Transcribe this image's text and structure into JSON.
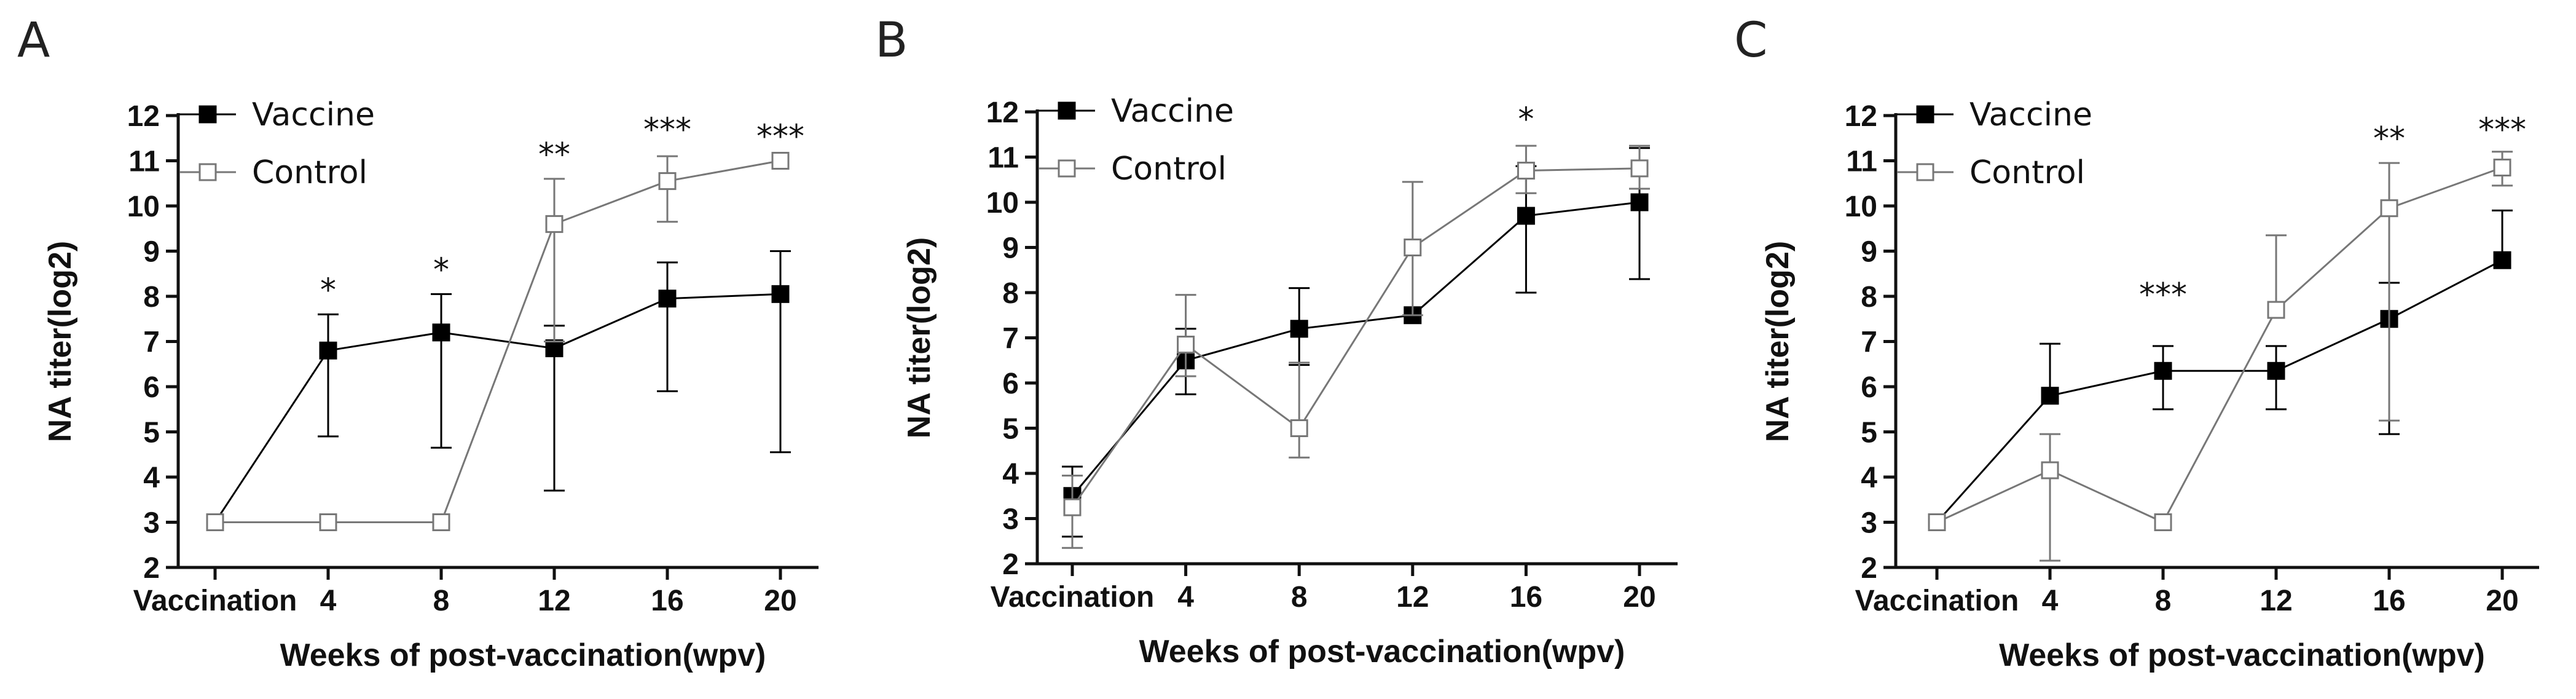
{
  "figure": {
    "colors": {
      "axis": "#111111",
      "vaccine": "#000000",
      "control_line": "#777777",
      "control_fill": "#ffffff"
    }
  },
  "chart_data": [
    {
      "panel": "A",
      "type": "line",
      "xlabel": "Weeks of post-vaccination(wpv)",
      "ylabel": "NA titer(log2)",
      "ylim": [
        2,
        12
      ],
      "categories": [
        "Vaccination",
        "4",
        "8",
        "12",
        "16",
        "20"
      ],
      "yticks": [
        "2",
        "3",
        "4",
        "5",
        "6",
        "7",
        "8",
        "9",
        "10",
        "11",
        "12"
      ],
      "legend": {
        "position": "top-left",
        "entries": [
          "Vaccine",
          "Control"
        ]
      },
      "series": [
        {
          "name": "Vaccine",
          "values": [
            3,
            6.8,
            7.2,
            6.85,
            7.95,
            8.05
          ],
          "err_up": [
            0,
            0.8,
            0.85,
            0.5,
            0.8,
            0.95
          ],
          "err_down": [
            0,
            1.9,
            2.55,
            3.15,
            2.05,
            3.5
          ]
        },
        {
          "name": "Control",
          "values": [
            3,
            3,
            3,
            9.6,
            10.55,
            11.0
          ],
          "err_up": [
            0,
            0,
            0,
            1.0,
            0.55,
            0
          ],
          "err_down": [
            0,
            0,
            0,
            2.6,
            0.9,
            0
          ]
        }
      ],
      "annotations": [
        {
          "category": "4",
          "y": 7.6,
          "text": "*"
        },
        {
          "category": "8",
          "y": 8.05,
          "text": "*"
        },
        {
          "category": "12",
          "y": 10.6,
          "text": "**"
        },
        {
          "category": "16",
          "y": 11.15,
          "text": "***"
        },
        {
          "category": "20",
          "y": 11.0,
          "text": "***"
        }
      ]
    },
    {
      "panel": "B",
      "type": "line",
      "xlabel": "Weeks of post-vaccination(wpv)",
      "ylabel": "NA titer(log2)",
      "ylim": [
        2,
        12
      ],
      "categories": [
        "Vaccination",
        "4",
        "8",
        "12",
        "16",
        "20"
      ],
      "yticks": [
        "2",
        "3",
        "4",
        "5",
        "6",
        "7",
        "8",
        "9",
        "10",
        "11",
        "12"
      ],
      "legend": {
        "position": "top-left",
        "entries": [
          "Vaccine",
          "Control"
        ]
      },
      "series": [
        {
          "name": "Vaccine",
          "values": [
            3.5,
            6.5,
            7.2,
            7.5,
            9.7,
            10.0
          ],
          "err_up": [
            0.65,
            0.7,
            0.9,
            0,
            1.1,
            1.2
          ],
          "err_down": [
            0.9,
            0.75,
            0.8,
            0,
            1.7,
            1.7
          ]
        },
        {
          "name": "Control",
          "values": [
            3.25,
            6.85,
            5.0,
            9.0,
            10.7,
            10.75
          ],
          "err_up": [
            0.7,
            1.1,
            1.45,
            1.45,
            0.55,
            0.5
          ],
          "err_down": [
            0.9,
            0.7,
            0.65,
            1.5,
            0.5,
            0.45
          ]
        }
      ],
      "annotations": [
        {
          "category": "16",
          "y": 11.3,
          "text": "*"
        }
      ]
    },
    {
      "panel": "C",
      "type": "line",
      "xlabel": "Weeks of post-vaccination(wpv)",
      "ylabel": "NA titer(log2)",
      "ylim": [
        2,
        12
      ],
      "categories": [
        "Vaccination",
        "4",
        "8",
        "12",
        "16",
        "20"
      ],
      "yticks": [
        "2",
        "3",
        "4",
        "5",
        "6",
        "7",
        "8",
        "9",
        "10",
        "11",
        "12"
      ],
      "legend": {
        "position": "top-left",
        "entries": [
          "Vaccine",
          "Control"
        ]
      },
      "series": [
        {
          "name": "Vaccine",
          "values": [
            3,
            5.8,
            6.35,
            6.35,
            7.5,
            8.8
          ],
          "err_up": [
            0,
            1.15,
            0.55,
            0.55,
            0.8,
            1.1
          ],
          "err_down": [
            0,
            0,
            0.85,
            0.85,
            2.55,
            0
          ]
        },
        {
          "name": "Control",
          "values": [
            3,
            4.15,
            3,
            7.7,
            9.95,
            10.85
          ],
          "err_up": [
            0,
            0.8,
            0,
            1.65,
            1.0,
            0.35
          ],
          "err_down": [
            0,
            2.0,
            0,
            0,
            4.7,
            0.4
          ]
        }
      ],
      "annotations": [
        {
          "category": "8",
          "y": 7.5,
          "text": "***"
        },
        {
          "category": "16",
          "y": 10.95,
          "text": "**"
        },
        {
          "category": "20",
          "y": 11.15,
          "text": "***"
        }
      ]
    }
  ]
}
